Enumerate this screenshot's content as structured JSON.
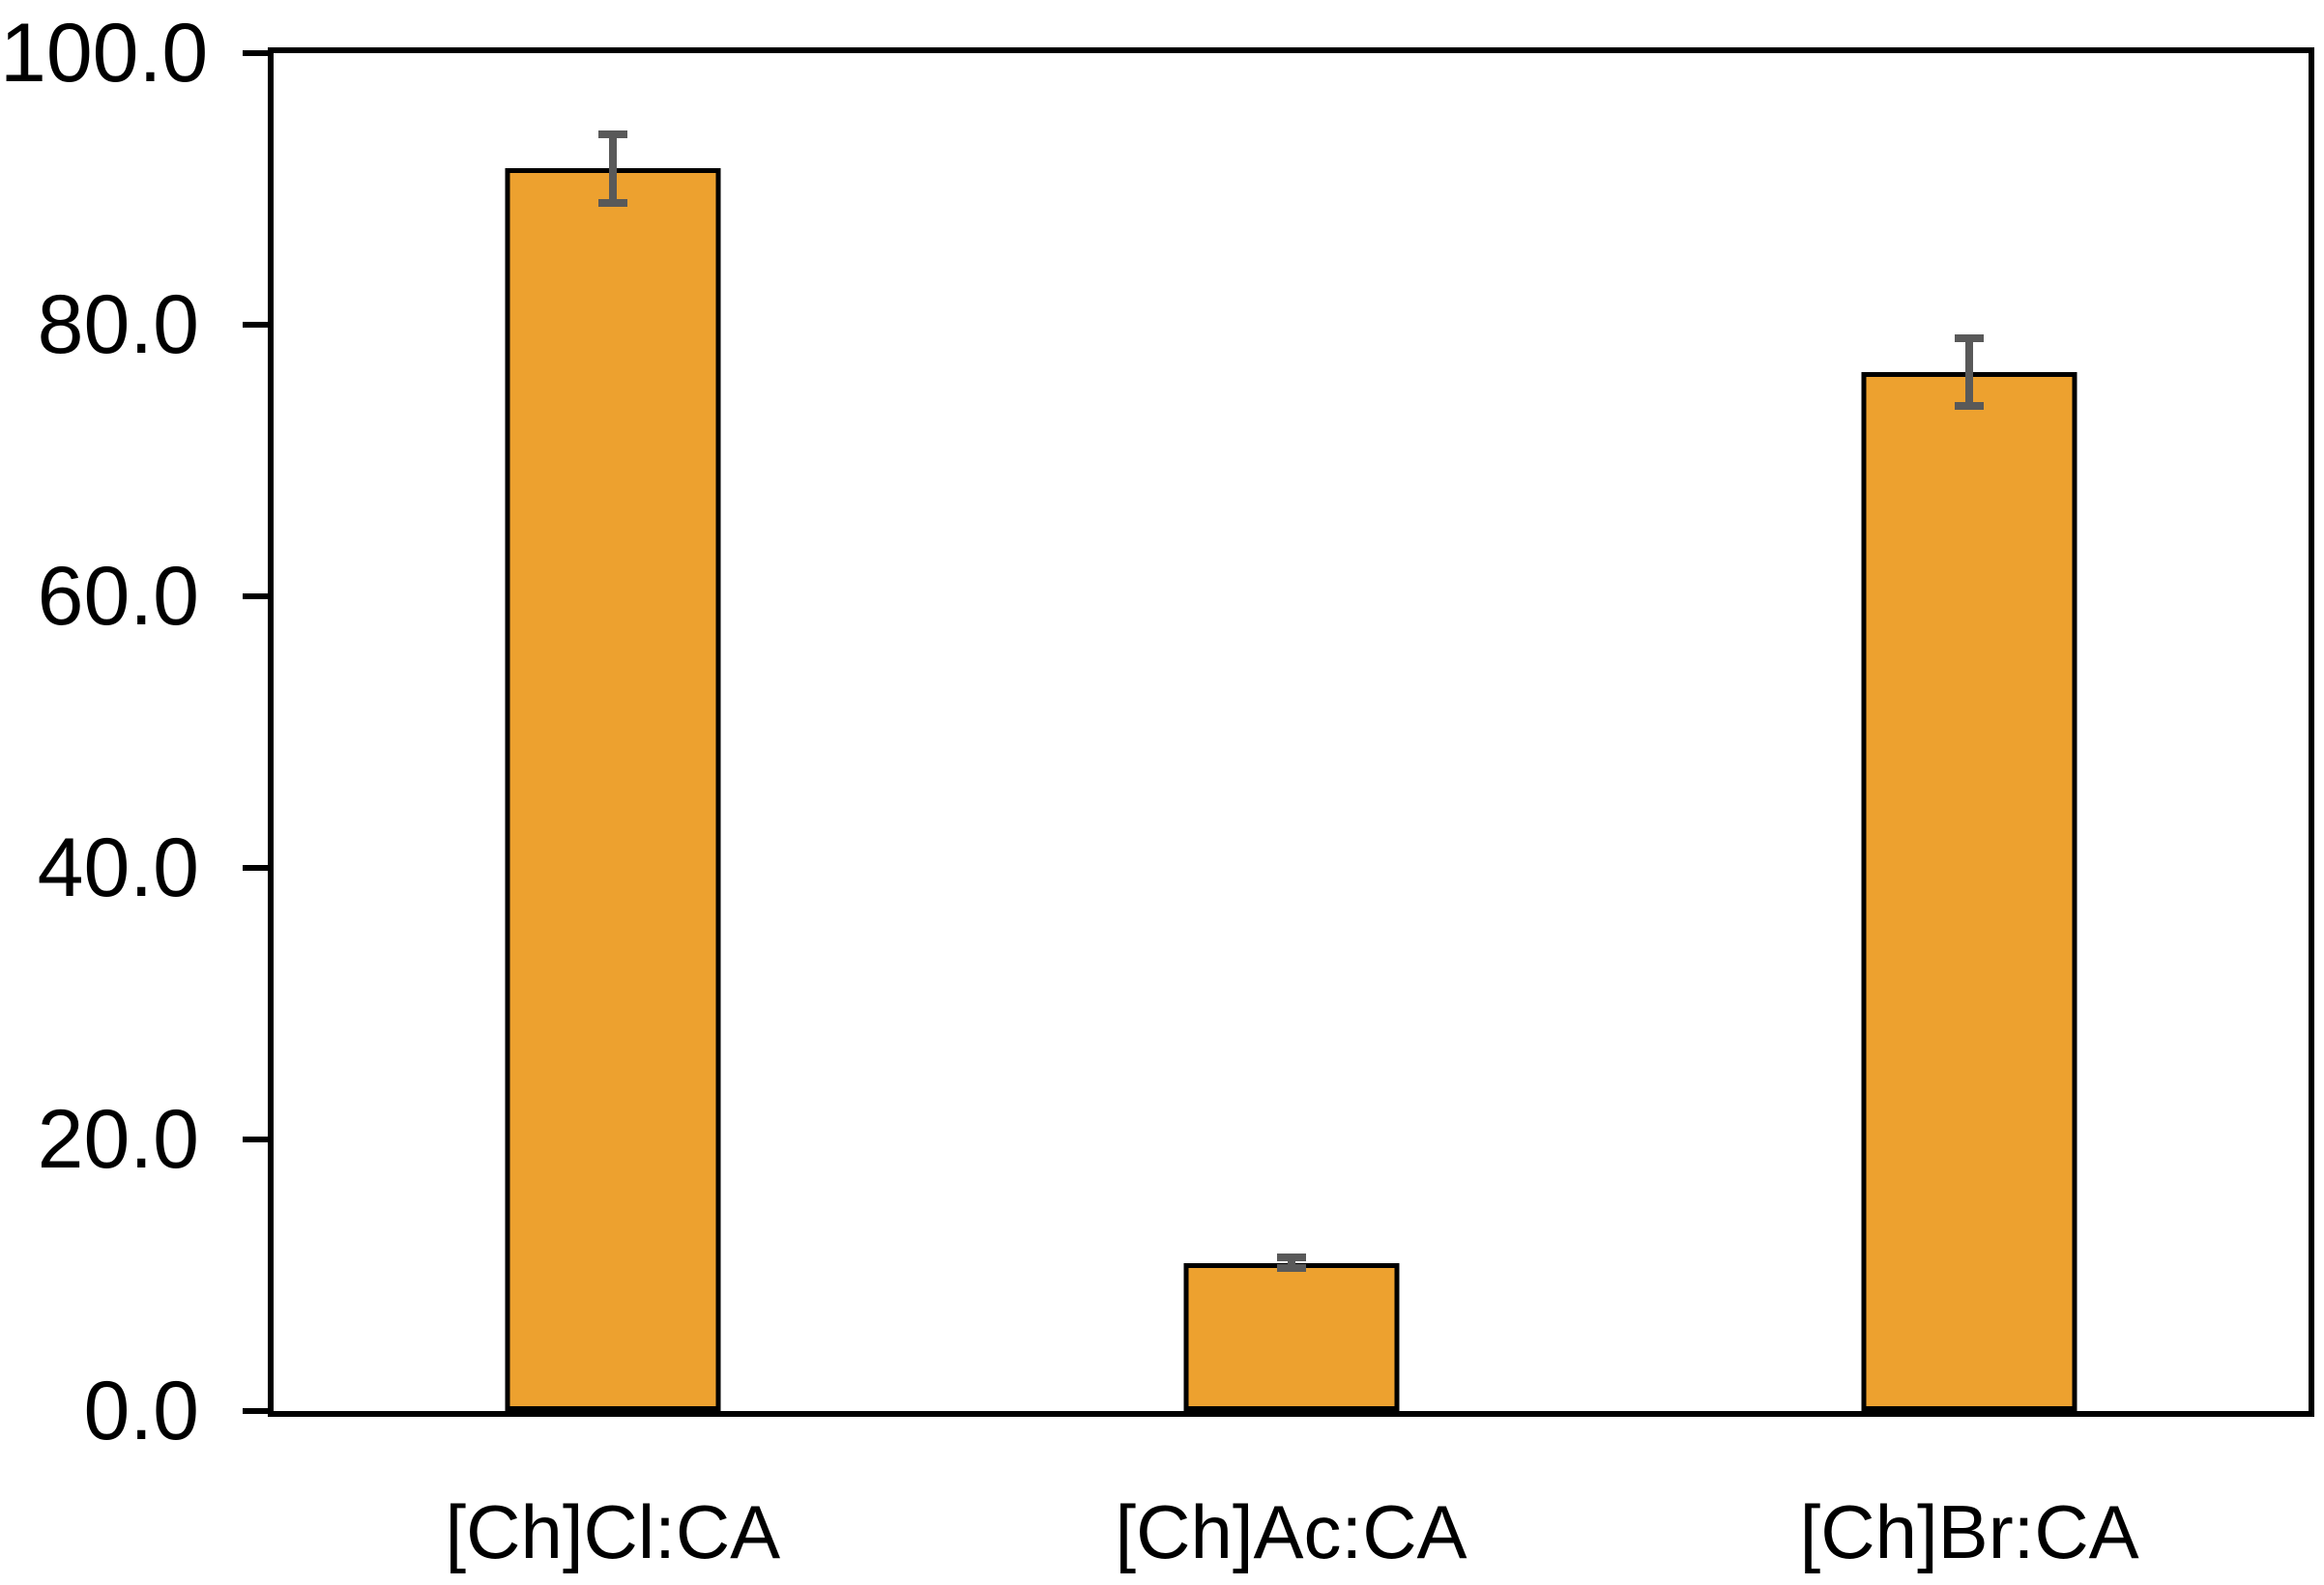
{
  "chart_data": {
    "type": "bar",
    "title": "",
    "xlabel": "",
    "ylabel": "",
    "categories": [
      "[Ch]Cl:CA",
      "[Ch]Ac:CA",
      "[Ch]Br:CA"
    ],
    "values": [
      91.5,
      10.9,
      76.5
    ],
    "error_bars": [
      2.5,
      0.4,
      2.5
    ],
    "ylim": [
      0,
      100
    ],
    "y_ticks": [
      {
        "label": "0.0",
        "value": 0
      },
      {
        "label": "20.0",
        "value": 20
      },
      {
        "label": "40.0",
        "value": 40
      },
      {
        "label": "60.0",
        "value": 60
      },
      {
        "label": "80.0",
        "value": 80
      },
      {
        "label": "100.0",
        "value": 100
      }
    ],
    "grid": "off",
    "legend": "none",
    "colors": {
      "bar_fill": "#EDA12F",
      "bar_border": "#000000",
      "error_bar": "#595959",
      "axis": "#000000",
      "background": "#FFFFFF",
      "tick_label": "#000000"
    }
  }
}
